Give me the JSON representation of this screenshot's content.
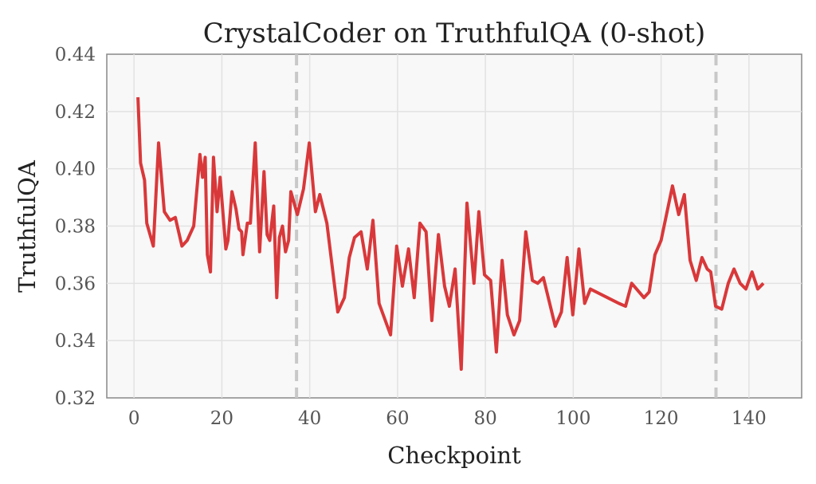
{
  "chart_data": {
    "type": "line",
    "title": "CrystalCoder on TruthfulQA (0-shot)",
    "xlabel": "Checkpoint",
    "ylabel": "TruthfulQA",
    "xlim": [
      -6.2,
      152
    ],
    "ylim": [
      0.32,
      0.44
    ],
    "xticks": [
      0,
      20,
      40,
      60,
      80,
      100,
      120,
      140
    ],
    "yticks": [
      0.32,
      0.34,
      0.36,
      0.38,
      0.4,
      0.42,
      0.44
    ],
    "xtick_labels": [
      "0",
      "20",
      "40",
      "60",
      "80",
      "100",
      "120",
      "140"
    ],
    "ytick_labels": [
      "0.32",
      "0.34",
      "0.36",
      "0.38",
      "0.40",
      "0.42",
      "0.44"
    ],
    "grid": true,
    "vlines": [
      37,
      132.5
    ],
    "line_color": "#d9383a",
    "vline_color": "#c8c8c8",
    "series": [
      {
        "name": "TruthfulQA",
        "x": [
          0.9,
          1.5,
          2.4,
          2.9,
          4.4,
          5.6,
          6.9,
          8.2,
          9.4,
          10.9,
          12.1,
          13.6,
          15,
          15.6,
          16.2,
          16.7,
          17.4,
          18.1,
          18.9,
          19.6,
          20.9,
          21.4,
          22.3,
          23.2,
          23.9,
          24.5,
          24.8,
          25.8,
          26.5,
          27.6,
          28.6,
          29.6,
          30.3,
          30.9,
          31.8,
          32.5,
          33.1,
          33.8,
          34.5,
          35.2,
          35.7,
          37.2,
          38.6,
          39.9,
          41.3,
          42.3,
          43.9,
          46.4,
          47.9,
          49,
          50.2,
          51.7,
          53.1,
          54.4,
          55.8,
          58.4,
          59.8,
          61.1,
          62.5,
          63.8,
          65.1,
          66.5,
          67.8,
          69.3,
          70.7,
          71.8,
          73.1,
          74.5,
          75.8,
          77.4,
          78.5,
          79.8,
          81.2,
          82.5,
          83.8,
          85,
          86.5,
          87.8,
          89.2,
          90.7,
          91.9,
          93.2,
          95.9,
          97.3,
          98.6,
          99.9,
          101.3,
          102.6,
          103.9,
          110.4,
          111.9,
          113.3,
          116.1,
          117.3,
          118.6,
          120,
          122.6,
          124,
          125.3,
          126.6,
          128,
          129.3,
          130.5,
          131.3,
          132.4,
          133.8,
          135.3,
          136.6,
          138,
          139.3,
          140.7,
          142,
          143.3
        ],
        "y": [
          0.425,
          0.402,
          0.396,
          0.381,
          0.373,
          0.409,
          0.385,
          0.382,
          0.383,
          0.373,
          0.375,
          0.38,
          0.405,
          0.397,
          0.404,
          0.37,
          0.364,
          0.404,
          0.385,
          0.397,
          0.372,
          0.375,
          0.392,
          0.386,
          0.379,
          0.378,
          0.37,
          0.381,
          0.381,
          0.409,
          0.371,
          0.399,
          0.377,
          0.375,
          0.387,
          0.355,
          0.376,
          0.38,
          0.371,
          0.375,
          0.392,
          0.384,
          0.393,
          0.409,
          0.385,
          0.391,
          0.381,
          0.35,
          0.355,
          0.369,
          0.376,
          0.378,
          0.365,
          0.382,
          0.353,
          0.342,
          0.373,
          0.359,
          0.372,
          0.355,
          0.381,
          0.378,
          0.347,
          0.377,
          0.359,
          0.352,
          0.365,
          0.33,
          0.388,
          0.36,
          0.385,
          0.363,
          0.361,
          0.336,
          0.368,
          0.349,
          0.342,
          0.347,
          0.378,
          0.361,
          0.36,
          0.362,
          0.345,
          0.35,
          0.369,
          0.349,
          0.372,
          0.353,
          0.358,
          0.353,
          0.352,
          0.36,
          0.355,
          0.357,
          0.37,
          0.375,
          0.394,
          0.384,
          0.391,
          0.368,
          0.361,
          0.369,
          0.365,
          0.364,
          0.352,
          0.351,
          0.36,
          0.365,
          0.36,
          0.358,
          0.364,
          0.358,
          0.36
        ]
      }
    ]
  }
}
